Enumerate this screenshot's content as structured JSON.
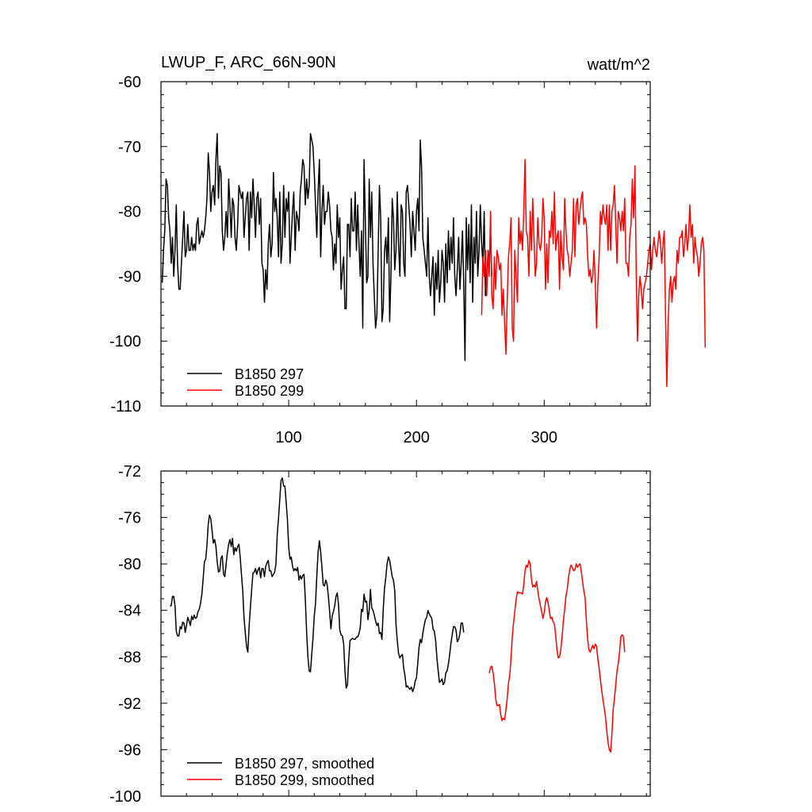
{
  "chart_data": [
    {
      "type": "line",
      "title": "LWUP_F, ARC_66N-90N",
      "units": "watt/m^2",
      "xlabel": "",
      "ylabel": "",
      "xlim": [
        0,
        383
      ],
      "ylim": [
        -110,
        -60
      ],
      "xticks": [
        100,
        200,
        300
      ],
      "yticks": [
        -60,
        -70,
        -80,
        -90,
        -100,
        -110
      ],
      "legend_position": "bottom-left",
      "series": [
        {
          "name": "B1850 297",
          "color": "#000000",
          "x_start": 1,
          "values": [
            -91,
            -86,
            -83,
            -75,
            -76,
            -81,
            -83,
            -88,
            -84,
            -90,
            -86,
            -79,
            -88,
            -92,
            -92,
            -88,
            -84,
            -80,
            -87,
            -86,
            -82,
            -86,
            -86,
            -84,
            -86,
            -85,
            -86,
            -82,
            -81,
            -85,
            -84,
            -83,
            -84,
            -83,
            -81,
            -78,
            -71,
            -74,
            -80,
            -77,
            -76,
            -79,
            -72,
            -68,
            -78,
            -73,
            -74,
            -83,
            -86,
            -84,
            -80,
            -84,
            -75,
            -79,
            -84,
            -78,
            -79,
            -84,
            -86,
            -82,
            -76,
            -77,
            -78,
            -77,
            -84,
            -81,
            -78,
            -77,
            -86,
            -77,
            -81,
            -75,
            -79,
            -84,
            -78,
            -77,
            -82,
            -78,
            -88,
            -89,
            -94,
            -89,
            -92,
            -85,
            -82,
            -87,
            -85,
            -74,
            -80,
            -78,
            -81,
            -87,
            -77,
            -88,
            -85,
            -76,
            -84,
            -78,
            -80,
            -77,
            -88,
            -84,
            -80,
            -77,
            -86,
            -80,
            -81,
            -83,
            -77,
            -75,
            -72,
            -73,
            -79,
            -75,
            -78,
            -76,
            -68,
            -69,
            -70,
            -74,
            -79,
            -84,
            -77,
            -72,
            -87,
            -80,
            -76,
            -82,
            -80,
            -80,
            -77,
            -79,
            -83,
            -84,
            -89,
            -85,
            -88,
            -79,
            -84,
            -81,
            -92,
            -89,
            -87,
            -95,
            -95,
            -82,
            -82,
            -87,
            -78,
            -83,
            -83,
            -77,
            -86,
            -79,
            -85,
            -90,
            -83,
            -98,
            -72,
            -82,
            -91,
            -90,
            -75,
            -84,
            -77,
            -88,
            -93,
            -98,
            -96,
            -86,
            -76,
            -81,
            -97,
            -95,
            -86,
            -84,
            -88,
            -81,
            -97,
            -90,
            -78,
            -81,
            -89,
            -86,
            -77,
            -85,
            -90,
            -79,
            -80,
            -88,
            -90,
            -77,
            -76,
            -79,
            -82,
            -87,
            -80,
            -83,
            -86,
            -80,
            -78,
            -83,
            -69,
            -73,
            -84,
            -86,
            -88,
            -90,
            -81,
            -90,
            -93,
            -90,
            -87,
            -96,
            -88,
            -92,
            -86,
            -94,
            -91,
            -86,
            -88,
            -94,
            -85,
            -91,
            -83,
            -89,
            -84,
            -88,
            -81,
            -90,
            -93,
            -89,
            -84,
            -92,
            -88,
            -83,
            -91,
            -103,
            -81,
            -89,
            -82,
            -91,
            -79,
            -94,
            -84,
            -88,
            -80,
            -90,
            -86,
            -79,
            -85,
            -88,
            -80,
            -93,
            -92,
            -86,
            -88,
            -83,
            -90
          ],
          "smoothed": [
            -83.6,
            -83.6,
            -82.8,
            -82.8,
            -83.6,
            -85.8,
            -86.2,
            -86.2,
            -85.4,
            -85.6,
            -85.0,
            -85.1,
            -85.9,
            -85.3,
            -84.6,
            -84.9,
            -85.3,
            -84.5,
            -84.8,
            -84.4,
            -84.7,
            -84.6,
            -84.1,
            -83.9,
            -83.4,
            -82.6,
            -81.3,
            -79.8,
            -79.6,
            -78.4,
            -76.6,
            -75.8,
            -76.1,
            -77.1,
            -78.2,
            -77.9,
            -78.5,
            -79.8,
            -80.7,
            -80.6,
            -79.5,
            -79.3,
            -80.9,
            -81.1,
            -80.0,
            -79.0,
            -78.3,
            -77.9,
            -78.5,
            -77.8,
            -79.2,
            -78.6,
            -78.9,
            -78.5,
            -78.3,
            -79.4,
            -80.9,
            -82.3,
            -84.6,
            -85.9,
            -87.1,
            -87.6,
            -85.3,
            -83.7,
            -82.2,
            -80.8,
            -80.7,
            -80.4,
            -80.9,
            -80.5,
            -80.3,
            -81.2,
            -80.4,
            -80.4,
            -81.1,
            -80.2,
            -79.9,
            -79.7,
            -80.6,
            -80.6,
            -81.1,
            -80.9,
            -80.7,
            -80.0,
            -77.5,
            -76.1,
            -74.5,
            -72.8,
            -72.6,
            -73.3,
            -73.3,
            -74.7,
            -76.2,
            -78.6,
            -79.6,
            -79.4,
            -80.2,
            -80.6,
            -80.4,
            -80.6,
            -80.3,
            -81.4,
            -81.0,
            -81.3,
            -81.0,
            -80.9,
            -83.0,
            -85.9,
            -88.0,
            -89.2,
            -89.3,
            -87.8,
            -86.4,
            -84.5,
            -83.4,
            -81.1,
            -79.0,
            -78.0,
            -79.0,
            -80.3,
            -81.8,
            -81.9,
            -81.4,
            -81.7,
            -82.7,
            -84.0,
            -85.6,
            -84.5,
            -84.1,
            -83.6,
            -82.8,
            -82.5,
            -83.5,
            -85.7,
            -86.1,
            -86.2,
            -86.9,
            -89.2,
            -90.7,
            -90.4,
            -88.2,
            -86.6,
            -86.5,
            -86.4,
            -86.5,
            -86.5,
            -86.3,
            -86.3,
            -86.0,
            -85.5,
            -83.9,
            -84.1,
            -82.6,
            -83.3,
            -83.2,
            -84.8,
            -84.0,
            -82.2,
            -83.8,
            -84.0,
            -84.4,
            -84.9,
            -85.3,
            -85.1,
            -86.0,
            -85.9,
            -86.5,
            -83.9,
            -82.1,
            -81.2,
            -80.0,
            -79.4,
            -79.7,
            -80.4,
            -81.1,
            -81.4,
            -82.3,
            -85.2,
            -86.6,
            -87.7,
            -88.1,
            -87.9,
            -87.8,
            -89.0,
            -89.6,
            -90.6,
            -90.5,
            -90.7,
            -90.8,
            -90.6,
            -91.0,
            -90.7,
            -90.1,
            -89.8,
            -88.6,
            -87.2,
            -86.5,
            -86.8,
            -86.0,
            -85.3,
            -84.8,
            -84.6,
            -84.0,
            -84.3,
            -84.5,
            -84.7,
            -85.6,
            -85.8,
            -86.6,
            -88.1,
            -89.2,
            -90.2,
            -90.1,
            -89.9,
            -90.4,
            -90.2,
            -89.4,
            -89.2,
            -88.6,
            -87.8,
            -86.8,
            -86.1,
            -85.4,
            -85.4,
            -85.7,
            -86.7,
            -86.5,
            -86.0,
            -85.1,
            -85.1,
            -85.9
          ]
        },
        {
          "name": "B1850 299",
          "color": "#ff0000",
          "x_start": 251,
          "values": [
            -96,
            -87,
            -90,
            -86,
            -93,
            -86,
            -90,
            -80,
            -93,
            -95,
            -87,
            -92,
            -86,
            -87,
            -89,
            -88,
            -96,
            -92,
            -97,
            -102,
            -94,
            -87,
            -85,
            -81,
            -98,
            -100,
            -86,
            -90,
            -94,
            -81,
            -85,
            -83,
            -86,
            -80,
            -72,
            -83,
            -84,
            -90,
            -80,
            -86,
            -78,
            -84,
            -90,
            -88,
            -81,
            -85,
            -86,
            -84,
            -78,
            -81,
            -92,
            -85,
            -91,
            -83,
            -84,
            -80,
            -85,
            -77,
            -86,
            -84,
            -83,
            -92,
            -83,
            -87,
            -89,
            -78,
            -83,
            -86,
            -87,
            -90,
            -88,
            -86,
            -78,
            -87,
            -79,
            -78,
            -82,
            -80,
            -78,
            -77,
            -82,
            -81,
            -82,
            -87,
            -90,
            -89,
            -91,
            -90,
            -86,
            -91,
            -98,
            -91,
            -87,
            -80,
            -82,
            -79,
            -81,
            -82,
            -79,
            -86,
            -79,
            -86,
            -80,
            -79,
            -76,
            -82,
            -88,
            -80,
            -81,
            -83,
            -80,
            -83,
            -78,
            -88,
            -88,
            -90,
            -84,
            -82,
            -75,
            -81,
            -73,
            -89,
            -100,
            -93,
            -90,
            -92,
            -95,
            -92,
            -91,
            -90,
            -88,
            -86,
            -85,
            -89,
            -86,
            -84,
            -86,
            -87,
            -85,
            -83,
            -85,
            -88,
            -85,
            -83,
            -96,
            -107,
            -97,
            -92,
            -90,
            -94,
            -91,
            -90,
            -92,
            -86,
            -88,
            -84,
            -84,
            -83,
            -87,
            -85,
            -82,
            -86,
            -84,
            -79,
            -84,
            -82,
            -88,
            -84,
            -86,
            -87,
            -90,
            -88,
            -85,
            -84,
            -86,
            -101
          ],
          "smoothed": [
            -89.4,
            -88.9,
            -88.8,
            -89.4,
            -90.3,
            -91.6,
            -92.2,
            -92.2,
            -92.1,
            -93.0,
            -93.5,
            -93.3,
            -93.4,
            -92.6,
            -91.6,
            -90.3,
            -89.6,
            -88.2,
            -86.3,
            -85.1,
            -84.1,
            -83.1,
            -82.4,
            -82.5,
            -82.5,
            -82.5,
            -82.6,
            -81.8,
            -80.6,
            -80.1,
            -80.3,
            -79.7,
            -80.0,
            -81.3,
            -82.0,
            -81.8,
            -82.0,
            -81.5,
            -82.3,
            -83.0,
            -83.6,
            -84.1,
            -84.7,
            -84.2,
            -83.3,
            -82.9,
            -83.3,
            -84.0,
            -84.7,
            -84.6,
            -85.0,
            -85.2,
            -86.2,
            -87.4,
            -88.1,
            -88.0,
            -87.4,
            -86.3,
            -84.9,
            -83.9,
            -82.8,
            -82.2,
            -81.2,
            -80.5,
            -80.1,
            -80.3,
            -80.6,
            -80.5,
            -80.0,
            -80.3,
            -80.1,
            -80.0,
            -80.6,
            -81.5,
            -82.3,
            -82.9,
            -84.9,
            -86.5,
            -87.4,
            -87.6,
            -87.3,
            -87.0,
            -87.3,
            -86.9,
            -87.1,
            -88.2,
            -89.0,
            -90.0,
            -90.9,
            -91.7,
            -92.4,
            -93.2,
            -94.4,
            -95.4,
            -96.0,
            -96.2,
            -94.6,
            -92.5,
            -91.6,
            -90.4,
            -89.2,
            -88.6,
            -87.6,
            -86.3,
            -86.1,
            -86.3,
            -87.6
          ]
        }
      ]
    },
    {
      "type": "line",
      "title": "",
      "xlabel": "",
      "ylabel": "",
      "ylim": [
        -100,
        -72
      ],
      "yticks": [
        -72,
        -76,
        -80,
        -84,
        -88,
        -92,
        -96,
        -100
      ],
      "legend_position": "bottom-left",
      "series": [
        {
          "name": "B1850 297, smoothed",
          "color": "#000000",
          "x_start": 7
        },
        {
          "name": "B1850 299, smoothed",
          "color": "#ff0000",
          "x_start": 257
        }
      ]
    }
  ]
}
